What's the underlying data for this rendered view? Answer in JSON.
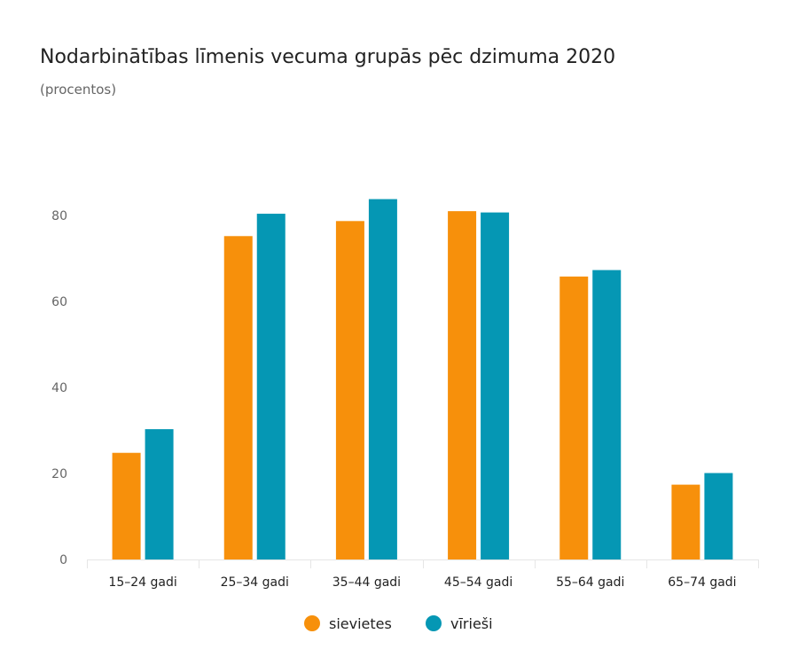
{
  "chart_data": {
    "type": "bar",
    "title": "Nodarbinātības līmenis vecuma grupās pēc dzimuma 2020",
    "subtitle": "(procentos)",
    "xlabel": "",
    "ylabel": "",
    "categories": [
      "15–24 gadi",
      "25–34 gadi",
      "35–44 gadi",
      "45–54 gadi",
      "55–64 gadi",
      "65–74 gadi"
    ],
    "series": [
      {
        "name": "sievietes",
        "color": "#f7900b",
        "values": [
          24.8,
          75.2,
          78.7,
          81.0,
          65.8,
          17.4
        ]
      },
      {
        "name": "vīrieši",
        "color": "#0597b4",
        "values": [
          30.3,
          80.4,
          83.8,
          80.7,
          67.3,
          20.1
        ]
      }
    ],
    "y_ticks": [
      0,
      20,
      40,
      60,
      80
    ],
    "ylim": [
      0,
      90
    ],
    "grid": false,
    "legend_position": "bottom-center"
  }
}
